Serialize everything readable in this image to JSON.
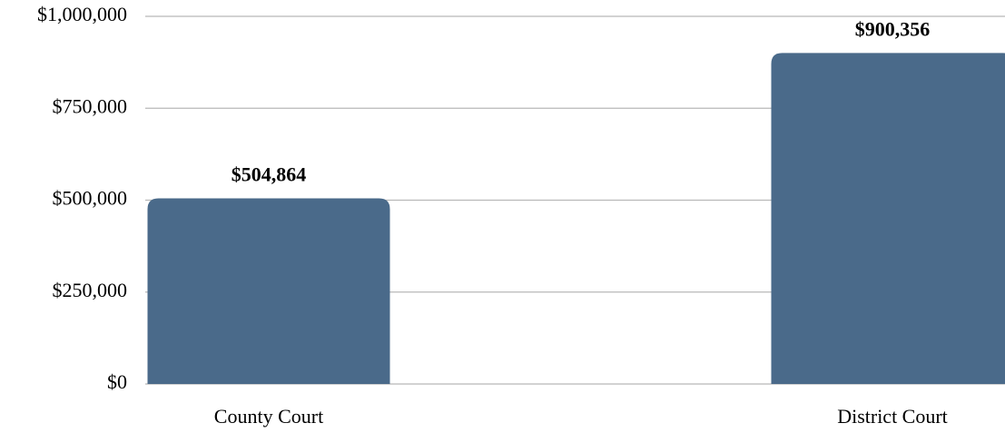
{
  "chart_data": {
    "type": "bar",
    "categories": [
      "County Court",
      "District Court"
    ],
    "values": [
      504864,
      900356
    ],
    "value_labels": [
      "$504,864",
      "$900,356"
    ],
    "color": "#4a6a8a",
    "ylim": [
      0,
      1000000
    ],
    "yticks": [
      {
        "value": 0,
        "label": "$0"
      },
      {
        "value": 250000,
        "label": "$250,000"
      },
      {
        "value": 500000,
        "label": "$500,000"
      },
      {
        "value": 750000,
        "label": "$750,000"
      },
      {
        "value": 1000000,
        "label": "$1,000,000"
      }
    ],
    "grid": true
  }
}
